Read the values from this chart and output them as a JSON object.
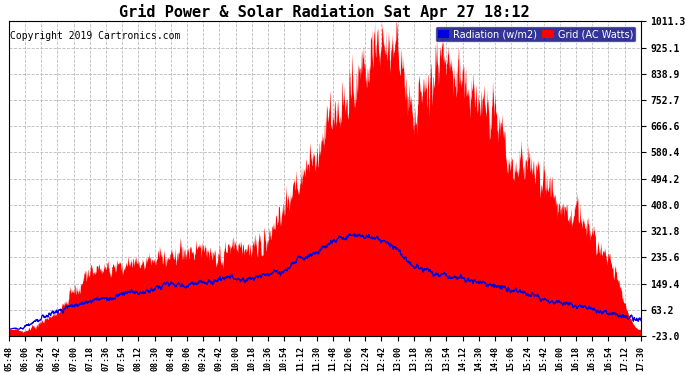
{
  "title": "Grid Power & Solar Radiation Sat Apr 27 18:12",
  "copyright": "Copyright 2019 Cartronics.com",
  "legend_radiation": "Radiation (w/m2)",
  "legend_grid": "Grid (AC Watts)",
  "yticks": [
    1011.3,
    925.1,
    838.9,
    752.7,
    666.6,
    580.4,
    494.2,
    408.0,
    321.8,
    235.6,
    149.4,
    63.2,
    -23.0
  ],
  "ymin": -23.0,
  "ymax": 1011.3,
  "background_color": "#ffffff",
  "grid_color": "#aaaaaa",
  "radiation_color": "#0000dd",
  "grid_ac_color": "#ff0000",
  "title_fontsize": 11,
  "copyright_fontsize": 7,
  "xtick_labels": [
    "05:48",
    "06:06",
    "06:24",
    "06:42",
    "07:00",
    "07:18",
    "07:36",
    "07:54",
    "08:12",
    "08:30",
    "08:48",
    "09:06",
    "09:24",
    "09:42",
    "10:00",
    "10:18",
    "10:36",
    "10:54",
    "11:12",
    "11:30",
    "11:48",
    "12:06",
    "12:24",
    "12:42",
    "13:00",
    "13:18",
    "13:36",
    "13:54",
    "14:12",
    "14:30",
    "14:48",
    "15:06",
    "15:24",
    "15:42",
    "16:00",
    "16:18",
    "16:36",
    "16:54",
    "17:12",
    "17:30"
  ],
  "grid_values": [
    -5,
    -10,
    20,
    50,
    130,
    180,
    200,
    210,
    220,
    230,
    240,
    250,
    260,
    250,
    260,
    275,
    290,
    420,
    500,
    580,
    700,
    750,
    850,
    950,
    880,
    700,
    820,
    900,
    820,
    750,
    700,
    560,
    520,
    480,
    420,
    380,
    300,
    220,
    130,
    -20
  ],
  "radiation_values": [
    5,
    15,
    30,
    60,
    80,
    90,
    100,
    110,
    120,
    130,
    140,
    150,
    155,
    160,
    165,
    170,
    180,
    195,
    230,
    250,
    285,
    310,
    310,
    295,
    260,
    200,
    185,
    175,
    165,
    155,
    145,
    130,
    115,
    100,
    90,
    80,
    70,
    55,
    40,
    25
  ]
}
